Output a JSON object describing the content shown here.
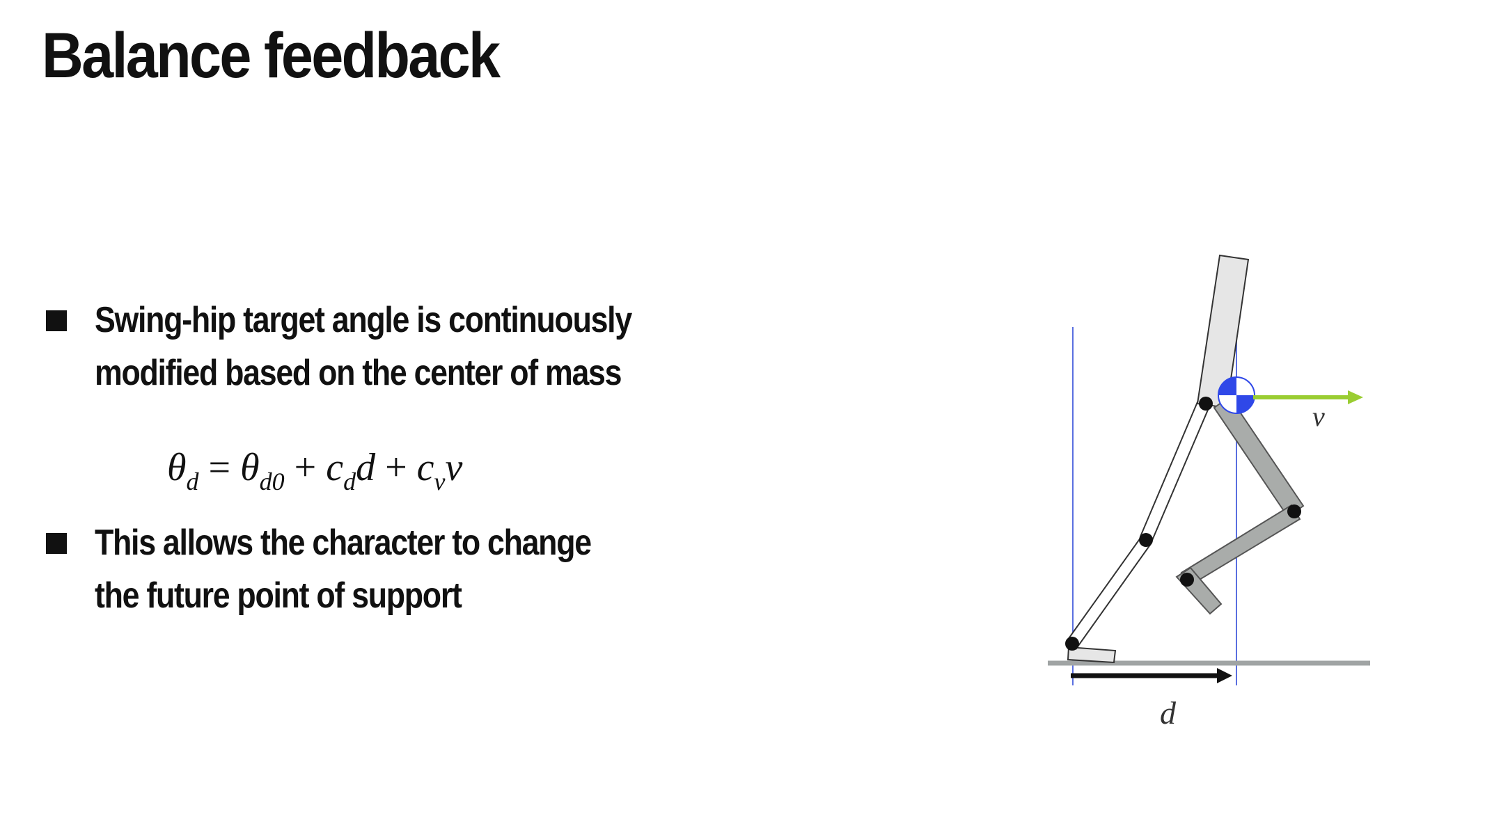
{
  "slide": {
    "title": "Balance feedback"
  },
  "bullets": [
    {
      "lines": [
        "Swing-hip target angle is continuously",
        "modified based on the center of mass"
      ]
    },
    {
      "lines": [
        "This allows the character to change",
        "the future point of support"
      ]
    }
  ],
  "equation": {
    "lhs_symbol": "θ",
    "lhs_sub": "d",
    "equals": "=",
    "t1_symbol": "θ",
    "t1_sub": "d0",
    "plus1": "+",
    "t2_coef": "c",
    "t2_coef_sub": "d",
    "t2_var": "d",
    "plus2": "+",
    "t3_coef": "c",
    "t3_coef_sub": "v",
    "t3_var": "v"
  },
  "diagram": {
    "velocity_label": "v",
    "distance_label": "d",
    "colors": {
      "velocity_arrow": "#9ACD32",
      "com_marker": "#2F48E8",
      "vertical_lines": "#5A6FE0",
      "ground": "#A0A4A4",
      "swing_leg": "#A9ACAA",
      "torso_fill": "#E6E6E6",
      "joint": "#111111"
    }
  }
}
